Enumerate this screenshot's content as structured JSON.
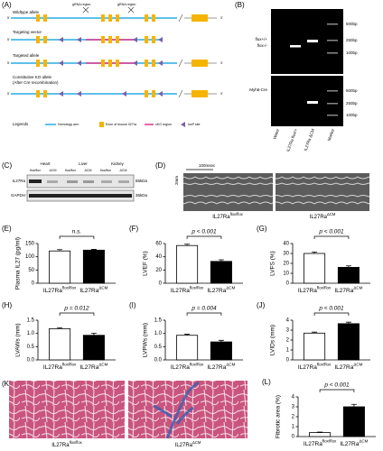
{
  "panel_labels": {
    "A": "(A)",
    "B": "(B)",
    "C": "(C)",
    "D": "(D)",
    "K": "(K)"
  },
  "diagram": {
    "rows": [
      "Wildtype allele",
      "Targeting vector",
      "Targeted allele",
      "Constitutive KO allele",
      "(After Cre recombination)"
    ],
    "grna": "gRNA region",
    "five": "5'",
    "three": "3'",
    "legend_title": "Legends",
    "legend": [
      "Homology arm",
      "Exon of mouse Il27ra",
      "cKO region",
      "loxP site"
    ]
  },
  "gel": {
    "top_labels": [
      "flox+/+",
      "flox-/-"
    ],
    "bottom_label": "Myh6-Cre",
    "markers": [
      "500bp",
      "250bp",
      "100bp"
    ],
    "lanes": [
      "Water",
      "IL27Ra flox/+",
      "IL27Ra ΔCM",
      "Marker"
    ]
  },
  "western": {
    "tissues": [
      "Heart",
      "Liver",
      "Kidney"
    ],
    "lanes": [
      "flox/flox",
      "ΔCM",
      "flox/flox",
      "ΔCM",
      "flox/flox",
      "ΔCM"
    ],
    "rows": [
      "IL27Ra",
      "GAPDH"
    ],
    "sizes": [
      "85kDa",
      "36kDa"
    ]
  },
  "echo": {
    "time": "100msec",
    "depth": "2mm",
    "captions": [
      {
        "text": "IL27Ra",
        "sup": "flox/flox"
      },
      {
        "text": "IL27Ra",
        "sup": "ΔCM"
      }
    ]
  },
  "histology": {
    "captions": [
      {
        "text": "IL27Ra",
        "sup": "flox/flox"
      },
      {
        "text": "IL27Ra",
        "sup": "ΔCM"
      }
    ]
  },
  "chart_data": [
    {
      "type": "bar",
      "label": "(E)",
      "ylabel": "Plasma IL27 (pg/ml)",
      "categories": [
        {
          "text": "IL27Ra",
          "sup": "flox/flox"
        },
        {
          "text": "IL27Ra",
          "sup": "ΔCM"
        }
      ],
      "values": [
        122,
        125
      ],
      "errors": [
        5,
        3
      ],
      "colors": [
        "#ffffff",
        "#000000"
      ],
      "ylim": [
        0,
        150
      ],
      "yticks": [
        0,
        50,
        100,
        150
      ],
      "annotation": "n.s."
    },
    {
      "type": "bar",
      "label": "(F)",
      "ylabel": "LVEF (%)",
      "categories": [
        {
          "text": "IL27Ra",
          "sup": "flox/flox"
        },
        {
          "text": "IL27Ra",
          "sup": "ΔCM"
        }
      ],
      "values": [
        57,
        33
      ],
      "errors": [
        2,
        2.5
      ],
      "colors": [
        "#ffffff",
        "#000000"
      ],
      "ylim": [
        0,
        60
      ],
      "yticks": [
        0,
        20,
        40,
        60
      ],
      "annotation": "p < 0.001"
    },
    {
      "type": "bar",
      "label": "(G)",
      "ylabel": "LVFS (%)",
      "categories": [
        {
          "text": "IL27Ra",
          "sup": "flox/flox"
        },
        {
          "text": "IL27Ra",
          "sup": "ΔCM"
        }
      ],
      "values": [
        30,
        16
      ],
      "errors": [
        1.5,
        1.5
      ],
      "colors": [
        "#ffffff",
        "#000000"
      ],
      "ylim": [
        0,
        40
      ],
      "yticks": [
        0,
        10,
        20,
        30,
        40
      ],
      "annotation": "p < 0.001"
    },
    {
      "type": "bar",
      "label": "(H)",
      "ylabel": "LVAWs (mm)",
      "categories": [
        {
          "text": "IL27Ra",
          "sup": "flox/flox"
        },
        {
          "text": "IL27Ra",
          "sup": "ΔCM"
        }
      ],
      "values": [
        1.18,
        0.93
      ],
      "errors": [
        0.04,
        0.08
      ],
      "colors": [
        "#ffffff",
        "#000000"
      ],
      "ylim": [
        0,
        1.5
      ],
      "yticks": [
        {
          "value": 0,
          "label": "0.0"
        },
        0.5,
        {
          "value": 1,
          "label": "1.0"
        },
        1.5
      ],
      "annotation": "p = 0.012"
    },
    {
      "type": "bar",
      "label": "(I)",
      "ylabel": "LVPWs (mm)",
      "categories": [
        {
          "text": "IL27Ra",
          "sup": "flox/flox"
        },
        {
          "text": "IL27Ra",
          "sup": "ΔCM"
        }
      ],
      "values": [
        0.93,
        0.68
      ],
      "errors": [
        0.04,
        0.06
      ],
      "colors": [
        "#ffffff",
        "#000000"
      ],
      "ylim": [
        0,
        1.5
      ],
      "yticks": [
        {
          "value": 0,
          "label": "0.0"
        },
        0.5,
        {
          "value": 1,
          "label": "1.0"
        },
        1.5
      ],
      "annotation": "p = 0.004"
    },
    {
      "type": "bar",
      "label": "(J)",
      "ylabel": "LVIDs (mm)",
      "categories": [
        {
          "text": "IL27Ra",
          "sup": "flox/flox"
        },
        {
          "text": "IL27Ra",
          "sup": "ΔCM"
        }
      ],
      "values": [
        2.7,
        3.65
      ],
      "errors": [
        0.1,
        0.15
      ],
      "colors": [
        "#ffffff",
        "#000000"
      ],
      "ylim": [
        0,
        4
      ],
      "yticks": [
        0,
        1,
        2,
        3,
        4
      ],
      "annotation": "p < 0.001"
    },
    {
      "type": "bar",
      "label": "(L)",
      "ylabel": "Fibrotic area (%)",
      "categories": [
        {
          "text": "IL27Ra",
          "sup": "flox/flox"
        },
        {
          "text": "IL27Ra",
          "sup": "ΔCM"
        }
      ],
      "values": [
        0.4,
        3.0
      ],
      "errors": [
        0.05,
        0.25
      ],
      "colors": [
        "#ffffff",
        "#000000"
      ],
      "ylim": [
        0,
        4
      ],
      "yticks": [
        0,
        1,
        2,
        3,
        4
      ],
      "annotation": "p < 0.001"
    }
  ]
}
